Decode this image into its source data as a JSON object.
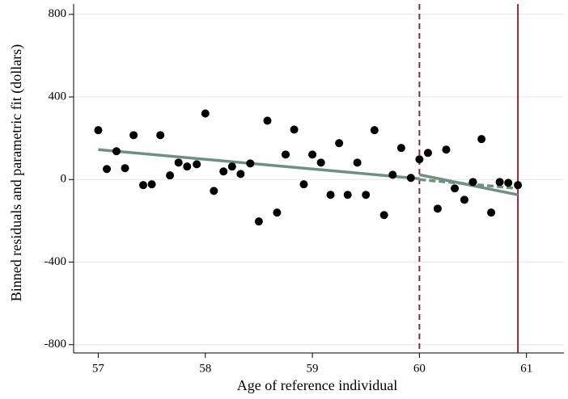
{
  "chart_data": {
    "type": "scatter",
    "x_label": "Age of reference individual",
    "y_label": "Binned residuals and parametric fit (dollars)",
    "x": [
      57.0,
      57.08,
      57.17,
      57.25,
      57.33,
      57.42,
      57.5,
      57.58,
      57.67,
      57.75,
      57.83,
      57.92,
      58.0,
      58.08,
      58.17,
      58.25,
      58.33,
      58.42,
      58.5,
      58.58,
      58.67,
      58.75,
      58.83,
      58.92,
      59.0,
      59.08,
      59.17,
      59.25,
      59.33,
      59.42,
      59.5,
      59.58,
      59.67,
      59.75,
      59.83,
      59.92,
      60.0,
      60.08,
      60.17,
      60.25,
      60.33,
      60.42,
      60.5,
      60.58,
      60.67,
      60.75,
      60.83,
      60.92
    ],
    "values": [
      239,
      51,
      137,
      55,
      215,
      -27,
      -23,
      215,
      20,
      82,
      63,
      74,
      320,
      -55,
      39,
      63,
      27,
      78,
      -203,
      285,
      -160,
      121,
      242,
      -23,
      121,
      82,
      -74,
      176,
      -74,
      82,
      -74,
      239,
      -172,
      23,
      153,
      8,
      98,
      129,
      -141,
      145,
      -43,
      -98,
      -12,
      196,
      -160,
      -12,
      -16,
      -27
    ],
    "color": "#000000",
    "fit_lines": [
      {
        "x": [
          57,
          60
        ],
        "values": [
          145,
          4
        ],
        "color": "#6e9080",
        "dashed": false
      },
      {
        "x": [
          60,
          60.92
        ],
        "values": [
          23,
          -74
        ],
        "color": "#6e9080",
        "dashed": false
      },
      {
        "x": [
          60,
          60.92
        ],
        "values": [
          0,
          -43
        ],
        "color": "#6e9080",
        "dashed": true
      }
    ],
    "vlines": [
      {
        "x": 60,
        "color": "#8b2a34",
        "dashed": true
      },
      {
        "x": 60.92,
        "color": "#8b2a34",
        "dashed": false
      }
    ],
    "xlim": [
      56.77,
      61.35
    ],
    "ylim": [
      -840,
      850
    ],
    "xticks": [
      57,
      58,
      59,
      60,
      61
    ],
    "yticks": [
      -800,
      -400,
      0,
      400,
      800
    ],
    "grid": true
  }
}
